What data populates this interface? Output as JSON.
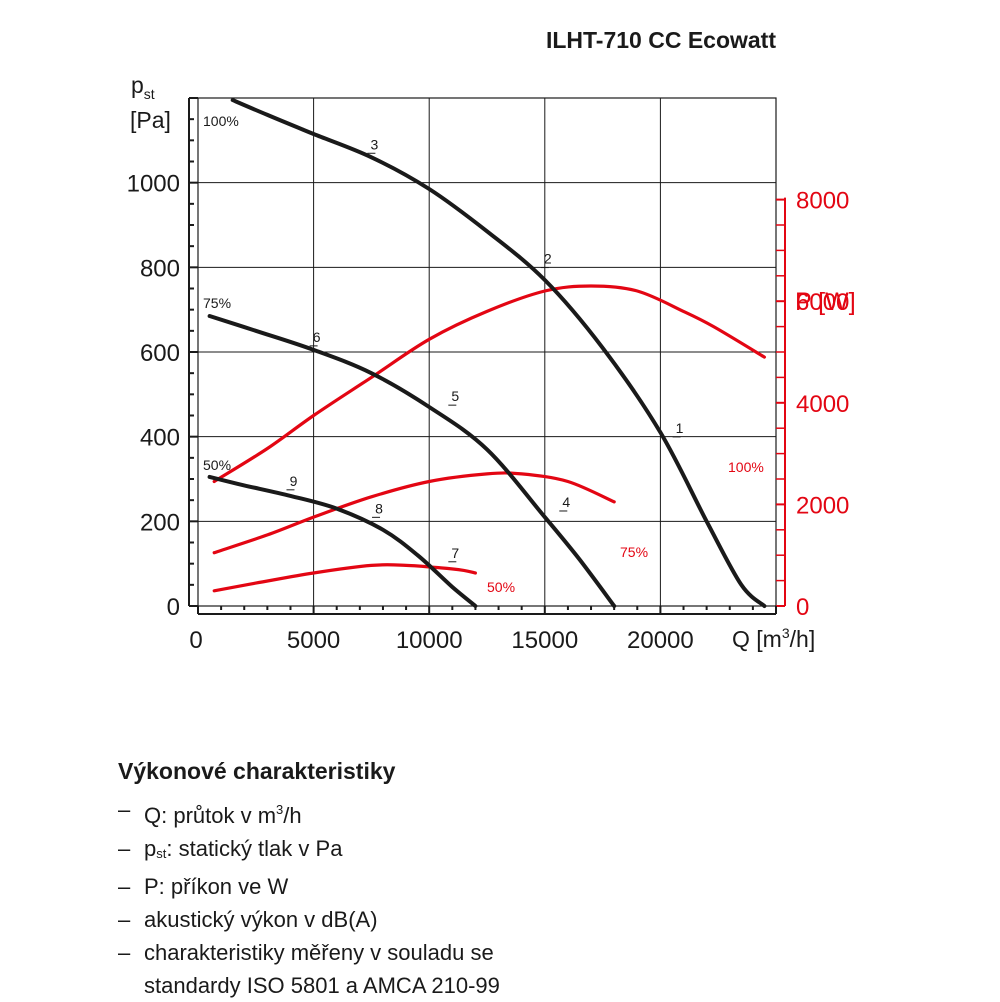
{
  "chart_data": {
    "type": "line",
    "title": "ILHT-710 CC Ecowatt",
    "x_axis": {
      "label": "Q [m³/h]",
      "label_main": "Q [m",
      "label_sup": "3",
      "label_tail": "/h]",
      "range": [
        0,
        25000
      ],
      "ticks": [
        0,
        5000,
        10000,
        15000,
        20000
      ]
    },
    "y_axis_left": {
      "label_main": "p",
      "label_sub": "st",
      "unit": "[Pa]",
      "range": [
        0,
        1200
      ],
      "ticks": [
        0,
        200,
        400,
        600,
        800,
        1000
      ]
    },
    "y_axis_right": {
      "label": "P [W]",
      "range": [
        0,
        10000
      ],
      "ticks": [
        0,
        2000,
        4000,
        6000,
        8000
      ],
      "color": "#e30613"
    },
    "grid": true,
    "pressure_series": [
      {
        "name": "100%",
        "color": "#1a1a1a",
        "x": [
          1500,
          3000,
          5000,
          7500,
          10000,
          12500,
          15000,
          17500,
          20000,
          22000,
          23500,
          24500
        ],
        "y": [
          1195,
          1160,
          1115,
          1060,
          985,
          885,
          770,
          610,
          410,
          200,
          50,
          0
        ]
      },
      {
        "name": "75%",
        "color": "#1a1a1a",
        "x": [
          500,
          2500,
          5000,
          7500,
          10000,
          12500,
          15000,
          16500,
          18000
        ],
        "y": [
          685,
          650,
          605,
          550,
          470,
          370,
          210,
          110,
          0
        ]
      },
      {
        "name": "50%",
        "color": "#1a1a1a",
        "x": [
          500,
          2000,
          4000,
          6000,
          8000,
          9500,
          11000,
          12000
        ],
        "y": [
          305,
          285,
          260,
          230,
          180,
          120,
          45,
          0
        ]
      }
    ],
    "power_series": [
      {
        "name": "100%",
        "color": "#e30613",
        "x": [
          700,
          3000,
          5000,
          7500,
          10000,
          12500,
          15000,
          17000,
          19000,
          21000,
          22300,
          24500
        ],
        "y": [
          2450,
          3100,
          3750,
          4500,
          5250,
          5800,
          6200,
          6300,
          6200,
          5800,
          5500,
          4900
        ]
      },
      {
        "name": "75%",
        "color": "#e30613",
        "x": [
          700,
          3000,
          5000,
          7500,
          10000,
          12500,
          14000,
          16000,
          18000
        ],
        "y": [
          1050,
          1400,
          1750,
          2150,
          2450,
          2600,
          2600,
          2450,
          2050
        ]
      },
      {
        "name": "50%",
        "color": "#e30613",
        "x": [
          700,
          2500,
          5000,
          7500,
          9000,
          10500,
          11500,
          12000
        ],
        "y": [
          300,
          450,
          650,
          800,
          800,
          750,
          700,
          650
        ]
      }
    ],
    "pressure_labels": [
      "100%",
      "75%",
      "50%"
    ],
    "power_labels": [
      "100%",
      "75%",
      "50%"
    ],
    "operating_points": [
      {
        "n": "1",
        "x": 20700,
        "y": 390
      },
      {
        "n": "2",
        "x": 15000,
        "y": 790
      },
      {
        "n": "3",
        "x": 7500,
        "y": 1060
      },
      {
        "n": "4",
        "x": 15800,
        "y": 215
      },
      {
        "n": "5",
        "x": 11000,
        "y": 465
      },
      {
        "n": "6",
        "x": 5000,
        "y": 605
      },
      {
        "n": "7",
        "x": 11000,
        "y": 95
      },
      {
        "n": "8",
        "x": 7700,
        "y": 200
      },
      {
        "n": "9",
        "x": 4000,
        "y": 265
      }
    ]
  },
  "legend": {
    "title": "Výkonové charakteristiky",
    "dash": "–",
    "items": [
      {
        "main": "Q: průtok v m",
        "sup": "3",
        "tail": "/h"
      },
      {
        "pre": "p",
        "sub": "st",
        "main": ": statický tlak v Pa"
      },
      {
        "main": "P: příkon ve W"
      },
      {
        "main": "akustický výkon v dB(A)"
      },
      {
        "main": "charakteristiky měřeny v souladu se",
        "cont": "standardy ISO 5801 a AMCA 210-99"
      }
    ]
  }
}
